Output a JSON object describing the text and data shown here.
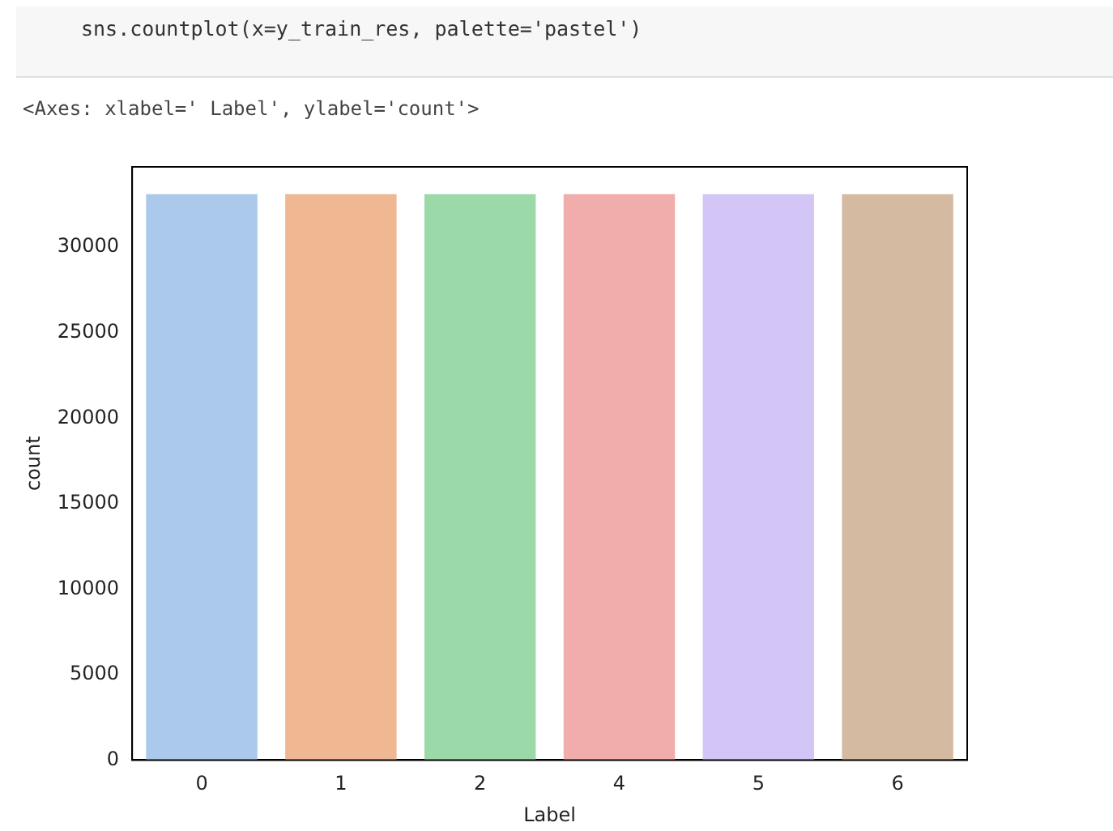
{
  "chart_data": {
    "type": "bar",
    "xlabel": "Label",
    "ylabel": "count",
    "annotations": [
      "sns.countplot(x=y_train_res, palette='pastel')",
      "<Axes: xlabel=' Label', ylabel='count'>"
    ],
    "categories": [
      "0",
      "1",
      "2",
      "4",
      "5",
      "6"
    ],
    "values": [
      33100,
      33100,
      33100,
      33100,
      33100,
      33100
    ],
    "colors": [
      "#abc9ea",
      "#efb792",
      "#9bd9a8",
      "#f0adab",
      "#d3c5f6",
      "#d5baa2"
    ],
    "ylim": [
      0,
      34700
    ],
    "yticks": [
      0,
      5000,
      10000,
      15000,
      20000,
      25000,
      30000
    ],
    "grid": false,
    "legend": false
  }
}
